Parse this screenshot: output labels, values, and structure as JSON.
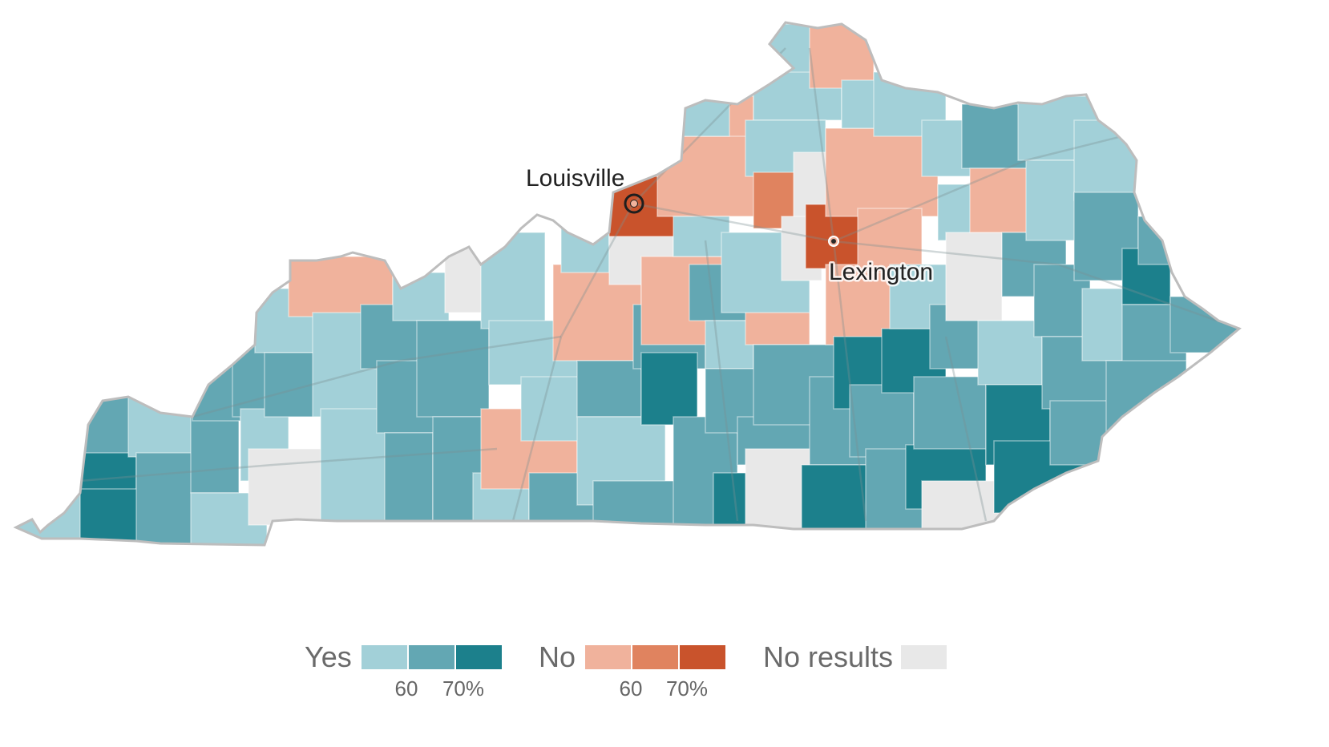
{
  "colors": {
    "yes_low": "#a2d0d8",
    "yes_mid": "#63a7b3",
    "yes_high": "#1c808c",
    "no_low": "#f0b29c",
    "no_mid": "#e0835f",
    "no_high": "#c9532c",
    "no_results": "#e8e8e8",
    "state_outline": "#bdbdbd",
    "roads": "#7b8f93"
  },
  "cities": [
    {
      "name": "Louisville"
    },
    {
      "name": "Lexington"
    }
  ],
  "legend": {
    "yes_label": "Yes",
    "no_label": "No",
    "no_results_label": "No results",
    "yes_ticks": [
      "60",
      "70%"
    ],
    "no_ticks": [
      "60",
      "70%"
    ]
  }
}
